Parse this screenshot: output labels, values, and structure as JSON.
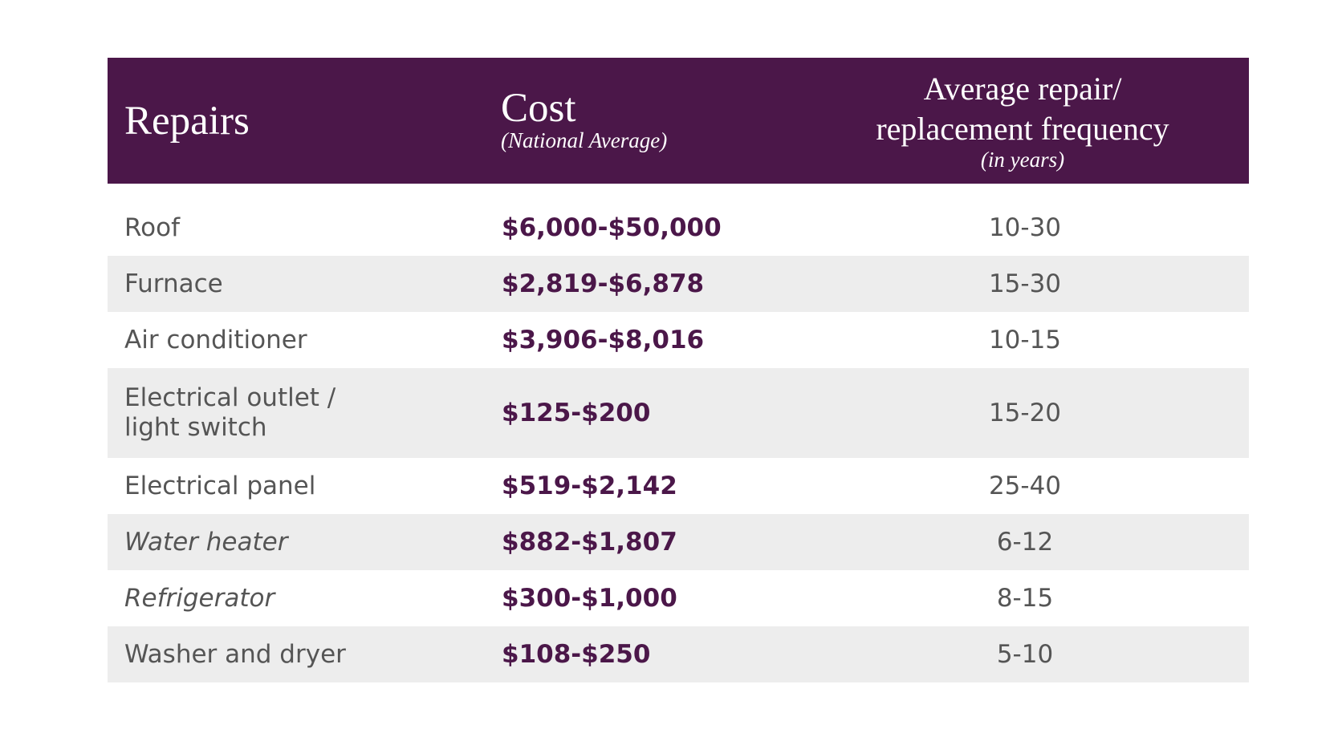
{
  "header": {
    "repairs": "Repairs",
    "cost": {
      "title": "Cost",
      "subtitle": "(National Average)"
    },
    "frequency": {
      "title": "Average repair/ replacement frequency",
      "subtitle": "(in years)"
    }
  },
  "table": {
    "rows": [
      [
        "Roof",
        "$6,000-$50,000",
        "10-30"
      ],
      [
        "Furnace",
        "$2,819-$6,878",
        "15-30"
      ],
      [
        "Air conditioner",
        "$3,906-$8,016",
        "10-15"
      ],
      [
        "Electrical outlet / light switch",
        "$125-$200",
        "15-20"
      ],
      [
        "Electrical panel",
        "$519-$2,142",
        "25-40"
      ],
      [
        "Water heater",
        "$882-$1,807",
        "6-12"
      ],
      [
        "Refrigerator",
        "$300-$1,000",
        "8-15"
      ],
      [
        "Washer and dryer",
        "$108-$250",
        "5-10"
      ]
    ]
  }
}
